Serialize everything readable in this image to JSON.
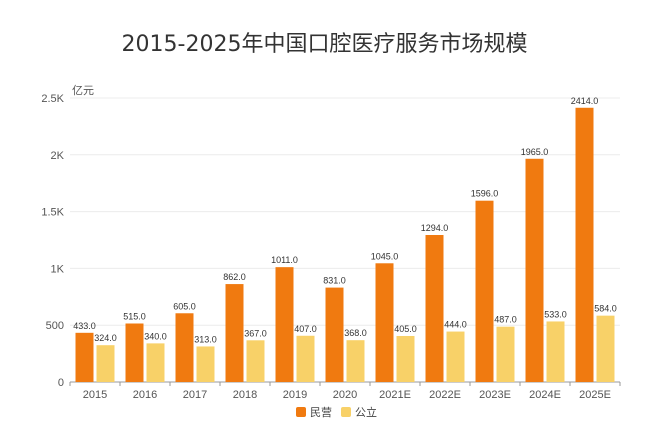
{
  "chart_data": {
    "type": "bar",
    "title": "2015-2025年中国口腔医疗服务市场规模",
    "ylabel": "亿元",
    "xlabel": "",
    "ylim": [
      0,
      2500
    ],
    "yticks": [
      "0",
      "500",
      "1K",
      "1.5K",
      "2K",
      "2.5K"
    ],
    "ytick_values": [
      0,
      500,
      1000,
      1500,
      2000,
      2500
    ],
    "grid": true,
    "legend_position": "bottom-center",
    "categories": [
      "2015",
      "2016",
      "2017",
      "2018",
      "2019",
      "2020",
      "2021E",
      "2022E",
      "2023E",
      "2024E",
      "2025E"
    ],
    "series": [
      {
        "name": "民营",
        "color": "#F07A10",
        "values": [
          433,
          515,
          605,
          862,
          1011,
          831,
          1045,
          1294,
          1596,
          1965,
          2414
        ],
        "labels": [
          "433.0",
          "515.0",
          "605.0",
          "862.0",
          "1011.0",
          "831.0",
          "1045.0",
          "1294.0",
          "1596.0",
          "1965.0",
          "2414.0"
        ]
      },
      {
        "name": "公立",
        "color": "#F8D168",
        "values": [
          324,
          340,
          313,
          367,
          407,
          368,
          405,
          444,
          487,
          533,
          584
        ],
        "labels": [
          "324.0",
          "340.0",
          "313.0",
          "367.0",
          "407.0",
          "368.0",
          "405.0",
          "444.0",
          "487.0",
          "533.0",
          "584.0"
        ]
      }
    ]
  }
}
